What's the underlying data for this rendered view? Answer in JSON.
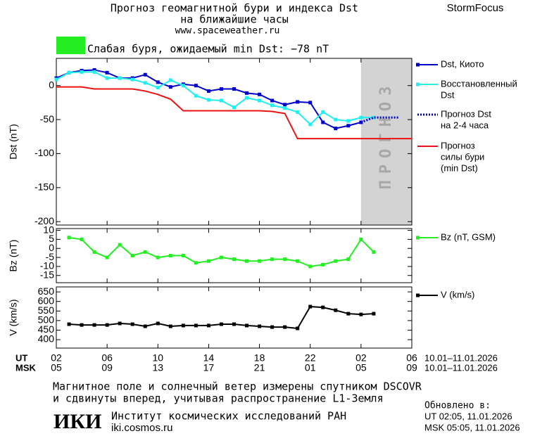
{
  "header": {
    "title": [
      "Прогноз геомагнитной бури и индекса Dst",
      "на ближайшие часы"
    ],
    "url": "www.spaceweather.ru",
    "brand": "StormFocus"
  },
  "status": {
    "text": "Слабая буря, ожидаемый min Dst: −78 nT",
    "color": "#22ee22"
  },
  "forecast_label": "ПРОГНОЗ",
  "forecast_from": 26,
  "forecast_color": "#d3d3d3",
  "time_axis": {
    "xlim": [
      2,
      30
    ],
    "rows": [
      {
        "label": "UT",
        "range": "10.01–11.01.2026",
        "ticks": [
          {
            "value": 2,
            "label": "02"
          },
          {
            "value": 6,
            "label": "06"
          },
          {
            "value": 10,
            "label": "10"
          },
          {
            "value": 14,
            "label": "14"
          },
          {
            "value": 18,
            "label": "18"
          },
          {
            "value": 22,
            "label": "22"
          },
          {
            "value": 26,
            "label": "02"
          },
          {
            "value": 30,
            "label": "06"
          }
        ]
      },
      {
        "label": "MSK",
        "range": "10.01–11.01.2026",
        "ticks": [
          {
            "value": 2,
            "label": "05"
          },
          {
            "value": 6,
            "label": "09"
          },
          {
            "value": 10,
            "label": "13"
          },
          {
            "value": 14,
            "label": "17"
          },
          {
            "value": 18,
            "label": "21"
          },
          {
            "value": 22,
            "label": "01"
          },
          {
            "value": 26,
            "label": "05"
          },
          {
            "value": 30,
            "label": "09"
          }
        ]
      }
    ]
  },
  "chart_data": [
    {
      "type": "line",
      "y_label": "Dst (nT)",
      "xlim": [
        2,
        30
      ],
      "ylim": [
        -205,
        40
      ],
      "yticks": [
        0,
        -50,
        -100,
        -150,
        -200
      ],
      "series": [
        {
          "name": [
            "Dst, Киото"
          ],
          "color": "#0000cc",
          "marker": true,
          "x": [
            2,
            3,
            4,
            5,
            6,
            7,
            8,
            9,
            10,
            11,
            12,
            13,
            14,
            15,
            16,
            17,
            18,
            19,
            20,
            21,
            22,
            23,
            24,
            25,
            26
          ],
          "values": [
            11,
            19,
            22,
            23,
            19,
            11,
            11,
            16,
            5,
            -2,
            2,
            0,
            -8,
            -5,
            -5,
            -11,
            -13,
            -22,
            -28,
            -24,
            -25,
            -54,
            -63,
            -59,
            -54
          ]
        },
        {
          "name": [
            "Восстановленный",
            "Dst"
          ],
          "color": "#22eeee",
          "marker": true,
          "x": [
            2,
            3,
            4,
            5,
            6,
            7,
            8,
            9,
            10,
            11,
            12,
            13,
            14,
            15,
            16,
            17,
            18,
            19,
            20,
            21,
            22,
            23,
            24,
            25,
            26,
            27
          ],
          "values": [
            9,
            19,
            20,
            20,
            11,
            11,
            9,
            4,
            -3,
            8,
            0,
            -15,
            -21,
            -22,
            -32,
            -18,
            -22,
            -29,
            -33,
            -39,
            -57,
            -39,
            -50,
            -52,
            -47,
            -47
          ]
        },
        {
          "name": [
            "Прогноз Dst",
            "на 2-4 часа"
          ],
          "color": "#0000cc",
          "dash": true,
          "x": [
            26,
            27,
            29
          ],
          "values": [
            -54,
            -47,
            -47
          ]
        },
        {
          "name": [
            "Прогноз",
            "силы бури",
            "(min Dst)"
          ],
          "color": "#ee1111",
          "x": [
            2,
            4,
            5,
            8,
            9,
            10,
            11,
            12,
            18,
            19,
            20,
            21,
            30
          ],
          "values": [
            -2,
            -2,
            -5,
            -5,
            -8,
            -13,
            -20,
            -37,
            -37,
            -38,
            -41,
            -78,
            -78
          ]
        }
      ]
    },
    {
      "type": "line",
      "y_label": "Bz (nT)",
      "xlim": [
        2,
        30
      ],
      "ylim": [
        -19,
        11
      ],
      "yticks": [
        10,
        5,
        0,
        -5,
        -10,
        -15
      ],
      "series": [
        {
          "name": [
            "Bz (nT, GSM)"
          ],
          "color": "#22ee22",
          "marker": true,
          "x": [
            3,
            4,
            5,
            6,
            7,
            8,
            9,
            10,
            11,
            12,
            13,
            14,
            15,
            16,
            17,
            18,
            19,
            20,
            21,
            22,
            23,
            24,
            25,
            26,
            27
          ],
          "values": [
            6,
            5,
            -2,
            -5,
            2,
            -4,
            -2,
            -5,
            -4,
            -4,
            -8,
            -7,
            -5,
            -6,
            -7,
            -7,
            -6,
            -6,
            -7,
            -10,
            -9,
            -7,
            -6,
            5,
            -2
          ]
        }
      ]
    },
    {
      "type": "line",
      "y_label": "V (km/s)",
      "xlim": [
        2,
        30
      ],
      "ylim": [
        356,
        676
      ],
      "yticks": [
        650,
        600,
        550,
        500,
        450,
        400
      ],
      "series": [
        {
          "name": [
            "V (km/s)"
          ],
          "color": "#000000",
          "marker": true,
          "x": [
            3,
            4,
            5,
            6,
            7,
            8,
            9,
            10,
            11,
            12,
            13,
            14,
            15,
            16,
            17,
            18,
            19,
            20,
            21,
            22,
            23,
            24,
            25,
            26,
            27
          ],
          "values": [
            481,
            477,
            477,
            477,
            485,
            481,
            470,
            485,
            470,
            474,
            474,
            474,
            481,
            481,
            474,
            470,
            466,
            466,
            459,
            573,
            569,
            554,
            536,
            532,
            536
          ]
        }
      ]
    }
  ],
  "footer": {
    "note": [
      "Магнитное поле и солнечный ветер измерены спутником DSCOVR",
      "и сдвинуты вперед, учитывая распространение L1-Земля"
    ],
    "logo": "ИКИ",
    "institute": "Институт космических исследований РАН",
    "site": "iki.cosmos.ru",
    "updated": "Обновлено в:",
    "updated_ut": "UT  02:05, 11.01.2026",
    "updated_msk": "MSK 05:05, 11.01.2026"
  }
}
